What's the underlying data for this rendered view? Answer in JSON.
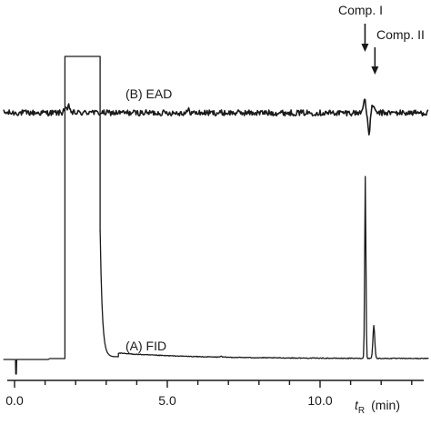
{
  "chart_data": {
    "type": "line",
    "xlabel_symbol": "t",
    "xlabel_subscript": "R",
    "xlabel_unit": "(min)",
    "xlim": [
      -0.4,
      13.6
    ],
    "x_ticks": [
      0,
      5,
      10
    ],
    "x_tick_labels": [
      "0.0",
      "5.0",
      "10.0"
    ],
    "grid": false,
    "series": [
      {
        "name": "(B)  EAD",
        "baseline": 0,
        "noise": 1,
        "events": [
          {
            "t": 1.64,
            "shape": "spike",
            "amp": 1.4
          },
          {
            "t": 1.78,
            "shape": "spike",
            "amp": 2.2
          },
          {
            "t": 2.5,
            "shape": "spike",
            "amp": 1.0
          },
          {
            "t": 5.7,
            "shape": "spike",
            "amp": 0.8
          },
          {
            "t": 11.45,
            "shape": "spike",
            "amp": 5.0
          },
          {
            "t": 11.6,
            "shape": "spike",
            "amp": -7.0
          },
          {
            "t": 11.72,
            "shape": "spike",
            "amp": 3.0
          }
        ]
      },
      {
        "name": "(A)  FID",
        "baseline": 0,
        "solvent_peak": {
          "start": 1.65,
          "end": 2.8,
          "saturated": true
        },
        "peaks": [
          {
            "t": 6.75,
            "height": 0.5
          },
          {
            "t": 11.48,
            "height": 100
          },
          {
            "t": 11.76,
            "height": 18
          }
        ],
        "artifacts": [
          {
            "t": 0.05,
            "depth": -8
          }
        ]
      }
    ],
    "annotations": [
      {
        "label": "Comp. I",
        "target_t": 11.48,
        "type": "arrow"
      },
      {
        "label": "Comp. II",
        "target_t": 11.76,
        "type": "arrow"
      }
    ]
  }
}
